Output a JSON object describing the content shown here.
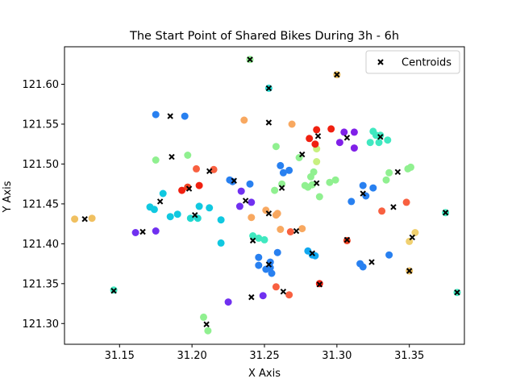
{
  "chart_data": {
    "type": "scatter",
    "title": "The Start Point of Shared Bikes During 3h - 6h",
    "xlabel": "X Axis",
    "ylabel": "Y Axis",
    "xlim": [
      31.112,
      31.388
    ],
    "ylim": [
      121.274,
      121.647
    ],
    "xticks": [
      31.15,
      31.2,
      31.25,
      31.3,
      31.35
    ],
    "xtick_labels": [
      "31.15",
      "31.20",
      "31.25",
      "31.30",
      "31.35"
    ],
    "yticks": [
      121.3,
      121.35,
      121.4,
      121.45,
      121.5,
      121.55,
      121.6
    ],
    "ytick_labels": [
      "121.30",
      "121.35",
      "121.40",
      "121.45",
      "121.50",
      "121.55",
      "121.60"
    ],
    "grid": false,
    "legend": {
      "placement": "top-right",
      "entries": [
        "Centroids"
      ]
    },
    "colormap": "rainbow",
    "points": [
      {
        "x": 31.119,
        "y": 121.431,
        "color": "#f0c060"
      },
      {
        "x": 31.131,
        "y": 121.432,
        "color": "#f0c060"
      },
      {
        "x": 31.146,
        "y": 121.342,
        "color": "#40e8c0"
      },
      {
        "x": 31.161,
        "y": 121.414,
        "color": "#7030f0"
      },
      {
        "x": 31.175,
        "y": 121.416,
        "color": "#7030f0"
      },
      {
        "x": 31.175,
        "y": 121.562,
        "color": "#2880f0"
      },
      {
        "x": 31.195,
        "y": 121.56,
        "color": "#2880f0"
      },
      {
        "x": 31.175,
        "y": 121.505,
        "color": "#90f090"
      },
      {
        "x": 31.197,
        "y": 121.511,
        "color": "#90f090"
      },
      {
        "x": 31.18,
        "y": 121.463,
        "color": "#10c8e0"
      },
      {
        "x": 31.171,
        "y": 121.446,
        "color": "#10c8e0"
      },
      {
        "x": 31.174,
        "y": 121.443,
        "color": "#10c8e0"
      },
      {
        "x": 31.185,
        "y": 121.434,
        "color": "#10c8e0"
      },
      {
        "x": 31.19,
        "y": 121.437,
        "color": "#10c8e0"
      },
      {
        "x": 31.193,
        "y": 121.467,
        "color": "#f02010"
      },
      {
        "x": 31.197,
        "y": 121.471,
        "color": "#f04020"
      },
      {
        "x": 31.205,
        "y": 121.473,
        "color": "#f02010"
      },
      {
        "x": 31.203,
        "y": 121.494,
        "color": "#f86040"
      },
      {
        "x": 31.215,
        "y": 121.493,
        "color": "#f86040"
      },
      {
        "x": 31.199,
        "y": 121.432,
        "color": "#20d8d0"
      },
      {
        "x": 31.205,
        "y": 121.447,
        "color": "#10c8e0"
      },
      {
        "x": 31.212,
        "y": 121.445,
        "color": "#10c8e0"
      },
      {
        "x": 31.22,
        "y": 121.43,
        "color": "#10c8e0"
      },
      {
        "x": 31.204,
        "y": 121.432,
        "color": "#20d8d0"
      },
      {
        "x": 31.22,
        "y": 121.401,
        "color": "#10c8e0"
      },
      {
        "x": 31.208,
        "y": 121.308,
        "color": "#90f090"
      },
      {
        "x": 31.211,
        "y": 121.291,
        "color": "#90f090"
      },
      {
        "x": 31.225,
        "y": 121.327,
        "color": "#7030f0"
      },
      {
        "x": 31.226,
        "y": 121.48,
        "color": "#2880f0"
      },
      {
        "x": 31.228,
        "y": 121.478,
        "color": "#2880f0"
      },
      {
        "x": 31.234,
        "y": 121.466,
        "color": "#7030f0"
      },
      {
        "x": 31.24,
        "y": 121.475,
        "color": "#2880f0"
      },
      {
        "x": 31.241,
        "y": 121.452,
        "color": "#7030f0"
      },
      {
        "x": 31.233,
        "y": 121.447,
        "color": "#7030f0"
      },
      {
        "x": 31.236,
        "y": 121.555,
        "color": "#f8a860"
      },
      {
        "x": 31.241,
        "y": 121.433,
        "color": "#f8a860"
      },
      {
        "x": 31.251,
        "y": 121.442,
        "color": "#f8a860"
      },
      {
        "x": 31.24,
        "y": 121.631,
        "color": "#90f090"
      },
      {
        "x": 31.253,
        "y": 121.595,
        "color": "#20d8d0"
      },
      {
        "x": 31.242,
        "y": 121.41,
        "color": "#40e8c0"
      },
      {
        "x": 31.246,
        "y": 121.407,
        "color": "#40e8c0"
      },
      {
        "x": 31.25,
        "y": 121.405,
        "color": "#40e8c0"
      },
      {
        "x": 31.246,
        "y": 121.383,
        "color": "#2880f0"
      },
      {
        "x": 31.246,
        "y": 121.373,
        "color": "#2880f0"
      },
      {
        "x": 31.251,
        "y": 121.368,
        "color": "#2880f0"
      },
      {
        "x": 31.254,
        "y": 121.377,
        "color": "#2880f0"
      },
      {
        "x": 31.255,
        "y": 121.363,
        "color": "#2880f0"
      },
      {
        "x": 31.254,
        "y": 121.37,
        "color": "#2880f0"
      },
      {
        "x": 31.259,
        "y": 121.389,
        "color": "#2880f0"
      },
      {
        "x": 31.249,
        "y": 121.335,
        "color": "#7030f0"
      },
      {
        "x": 31.258,
        "y": 121.346,
        "color": "#f86040"
      },
      {
        "x": 31.267,
        "y": 121.336,
        "color": "#f86040"
      },
      {
        "x": 31.258,
        "y": 121.436,
        "color": "#f8a860"
      },
      {
        "x": 31.259,
        "y": 121.438,
        "color": "#f8a860"
      },
      {
        "x": 31.261,
        "y": 121.418,
        "color": "#f8a860"
      },
      {
        "x": 31.268,
        "y": 121.415,
        "color": "#f86040"
      },
      {
        "x": 31.276,
        "y": 121.419,
        "color": "#f8a860"
      },
      {
        "x": 31.258,
        "y": 121.522,
        "color": "#90f090"
      },
      {
        "x": 31.257,
        "y": 121.467,
        "color": "#90f090"
      },
      {
        "x": 31.262,
        "y": 121.475,
        "color": "#90f090"
      },
      {
        "x": 31.261,
        "y": 121.498,
        "color": "#2880f0"
      },
      {
        "x": 31.263,
        "y": 121.489,
        "color": "#2880f0"
      },
      {
        "x": 31.267,
        "y": 121.492,
        "color": "#2880f0"
      },
      {
        "x": 31.269,
        "y": 121.55,
        "color": "#f8a860"
      },
      {
        "x": 31.274,
        "y": 121.508,
        "color": "#90f090"
      },
      {
        "x": 31.278,
        "y": 121.473,
        "color": "#90f090"
      },
      {
        "x": 31.28,
        "y": 121.471,
        "color": "#90f090"
      },
      {
        "x": 31.282,
        "y": 121.484,
        "color": "#90f090"
      },
      {
        "x": 31.284,
        "y": 121.49,
        "color": "#90f090"
      },
      {
        "x": 31.283,
        "y": 121.474,
        "color": "#90f090"
      },
      {
        "x": 31.286,
        "y": 121.503,
        "color": "#c8f080"
      },
      {
        "x": 31.286,
        "y": 121.519,
        "color": "#c8f080"
      },
      {
        "x": 31.288,
        "y": 121.459,
        "color": "#90f090"
      },
      {
        "x": 31.281,
        "y": 121.532,
        "color": "#f02010"
      },
      {
        "x": 31.285,
        "y": 121.525,
        "color": "#f02010"
      },
      {
        "x": 31.286,
        "y": 121.543,
        "color": "#f02010"
      },
      {
        "x": 31.296,
        "y": 121.544,
        "color": "#f02010"
      },
      {
        "x": 31.295,
        "y": 121.477,
        "color": "#90f090"
      },
      {
        "x": 31.299,
        "y": 121.48,
        "color": "#90f090"
      },
      {
        "x": 31.28,
        "y": 121.391,
        "color": "#10a8f0"
      },
      {
        "x": 31.283,
        "y": 121.386,
        "color": "#10a8f0"
      },
      {
        "x": 31.285,
        "y": 121.385,
        "color": "#10a8f0"
      },
      {
        "x": 31.288,
        "y": 121.35,
        "color": "#f02010"
      },
      {
        "x": 31.3,
        "y": 121.612,
        "color": "#f0c060"
      },
      {
        "x": 31.305,
        "y": 121.54,
        "color": "#8020e8"
      },
      {
        "x": 31.302,
        "y": 121.527,
        "color": "#8020e8"
      },
      {
        "x": 31.312,
        "y": 121.54,
        "color": "#8020e8"
      },
      {
        "x": 31.312,
        "y": 121.52,
        "color": "#8020e8"
      },
      {
        "x": 31.307,
        "y": 121.404,
        "color": "#f04020"
      },
      {
        "x": 31.31,
        "y": 121.453,
        "color": "#2880f0"
      },
      {
        "x": 31.318,
        "y": 121.473,
        "color": "#2880f0"
      },
      {
        "x": 31.32,
        "y": 121.46,
        "color": "#2880f0"
      },
      {
        "x": 31.325,
        "y": 121.47,
        "color": "#2880f0"
      },
      {
        "x": 31.316,
        "y": 121.375,
        "color": "#2880f0"
      },
      {
        "x": 31.318,
        "y": 121.371,
        "color": "#2880f0"
      },
      {
        "x": 31.323,
        "y": 121.527,
        "color": "#40e8c0"
      },
      {
        "x": 31.325,
        "y": 121.541,
        "color": "#40e8c0"
      },
      {
        "x": 31.327,
        "y": 121.536,
        "color": "#40e8c0"
      },
      {
        "x": 31.33,
        "y": 121.536,
        "color": "#40e8c0"
      },
      {
        "x": 31.329,
        "y": 121.527,
        "color": "#40e8c0"
      },
      {
        "x": 31.335,
        "y": 121.53,
        "color": "#40e8c0"
      },
      {
        "x": 31.331,
        "y": 121.441,
        "color": "#f86040"
      },
      {
        "x": 31.334,
        "y": 121.48,
        "color": "#90f090"
      },
      {
        "x": 31.336,
        "y": 121.489,
        "color": "#90f090"
      },
      {
        "x": 31.336,
        "y": 121.386,
        "color": "#2880f0"
      },
      {
        "x": 31.348,
        "y": 121.452,
        "color": "#f86040"
      },
      {
        "x": 31.349,
        "y": 121.494,
        "color": "#90f090"
      },
      {
        "x": 31.351,
        "y": 121.496,
        "color": "#90f090"
      },
      {
        "x": 31.35,
        "y": 121.403,
        "color": "#f0d070"
      },
      {
        "x": 31.354,
        "y": 121.414,
        "color": "#f0d070"
      },
      {
        "x": 31.35,
        "y": 121.366,
        "color": "#f0c060"
      },
      {
        "x": 31.375,
        "y": 121.439,
        "color": "#40e8c0"
      },
      {
        "x": 31.383,
        "y": 121.339,
        "color": "#40e8c0"
      }
    ],
    "centroids": [
      {
        "x": 31.126,
        "y": 121.431
      },
      {
        "x": 31.146,
        "y": 121.341
      },
      {
        "x": 31.166,
        "y": 121.415
      },
      {
        "x": 31.185,
        "y": 121.56
      },
      {
        "x": 31.186,
        "y": 121.509
      },
      {
        "x": 31.178,
        "y": 121.453
      },
      {
        "x": 31.198,
        "y": 121.469
      },
      {
        "x": 31.202,
        "y": 121.436
      },
      {
        "x": 31.212,
        "y": 121.491
      },
      {
        "x": 31.21,
        "y": 121.299
      },
      {
        "x": 31.24,
        "y": 121.631
      },
      {
        "x": 31.253,
        "y": 121.595
      },
      {
        "x": 31.253,
        "y": 121.552
      },
      {
        "x": 31.229,
        "y": 121.479
      },
      {
        "x": 31.237,
        "y": 121.454
      },
      {
        "x": 31.253,
        "y": 121.438
      },
      {
        "x": 31.242,
        "y": 121.404
      },
      {
        "x": 31.253,
        "y": 121.374
      },
      {
        "x": 31.241,
        "y": 121.333
      },
      {
        "x": 31.263,
        "y": 121.34
      },
      {
        "x": 31.262,
        "y": 121.47
      },
      {
        "x": 31.276,
        "y": 121.512
      },
      {
        "x": 31.272,
        "y": 121.416
      },
      {
        "x": 31.287,
        "y": 121.535
      },
      {
        "x": 31.286,
        "y": 121.476
      },
      {
        "x": 31.283,
        "y": 121.388
      },
      {
        "x": 31.288,
        "y": 121.349
      },
      {
        "x": 31.3,
        "y": 121.612
      },
      {
        "x": 31.307,
        "y": 121.533
      },
      {
        "x": 31.307,
        "y": 121.405
      },
      {
        "x": 31.318,
        "y": 121.463
      },
      {
        "x": 31.324,
        "y": 121.377
      },
      {
        "x": 31.33,
        "y": 121.534
      },
      {
        "x": 31.339,
        "y": 121.446
      },
      {
        "x": 31.342,
        "y": 121.49
      },
      {
        "x": 31.352,
        "y": 121.408
      },
      {
        "x": 31.35,
        "y": 121.366
      },
      {
        "x": 31.375,
        "y": 121.439
      },
      {
        "x": 31.383,
        "y": 121.339
      }
    ]
  }
}
